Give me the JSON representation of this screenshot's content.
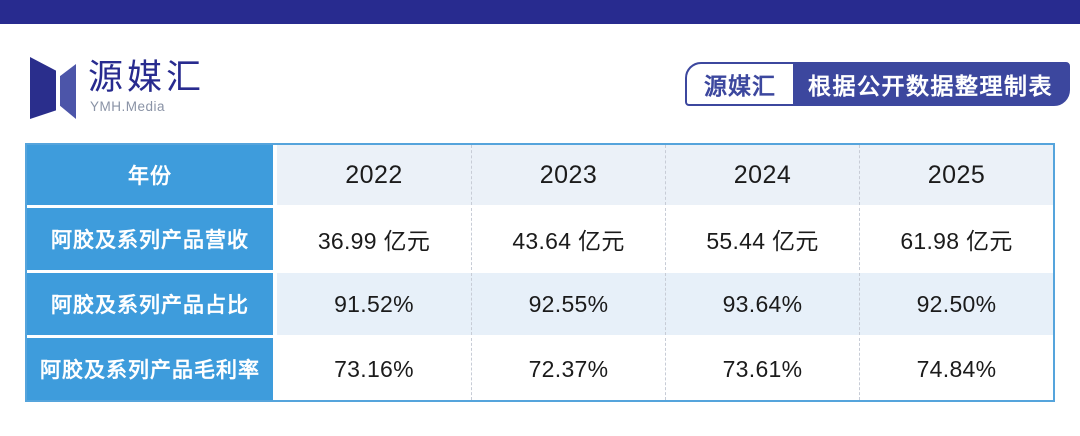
{
  "brand": {
    "name": "源媒汇",
    "subtitle": "YMH.Media"
  },
  "badge": {
    "brand": "源媒汇",
    "text": "根据公开数据整理制表"
  },
  "chart_data": {
    "type": "table",
    "corner_label": "年份",
    "categories": [
      "2022",
      "2023",
      "2024",
      "2025"
    ],
    "series": [
      {
        "name": "阿胶及系列产品营收",
        "values": [
          "36.99 亿元",
          "43.64 亿元",
          "55.44 亿元",
          "61.98 亿元"
        ]
      },
      {
        "name": "阿胶及系列产品占比",
        "values": [
          "91.52%",
          "92.55%",
          "93.64%",
          "92.50%"
        ]
      },
      {
        "name": "阿胶及系列产品毛利率",
        "values": [
          "73.16%",
          "72.37%",
          "73.61%",
          "74.84%"
        ]
      }
    ],
    "layout": {
      "label_column_color": "#3E9CDC",
      "alternating_rows": true,
      "column_separators": "dashed"
    }
  },
  "colors": {
    "navy": "#282B8F",
    "logo-dark": "#2A2E8C",
    "logo-light": "#4C55A9",
    "indigo": "#3C479E",
    "azure": "#3E9CDC",
    "head-bg": "#EBF1F8",
    "alt-bg": "#E7F0F9",
    "border": "#55A4DC",
    "dash": "#C7CCD6",
    "ink": "#1B1B1B",
    "sub": "#8A93A6"
  }
}
